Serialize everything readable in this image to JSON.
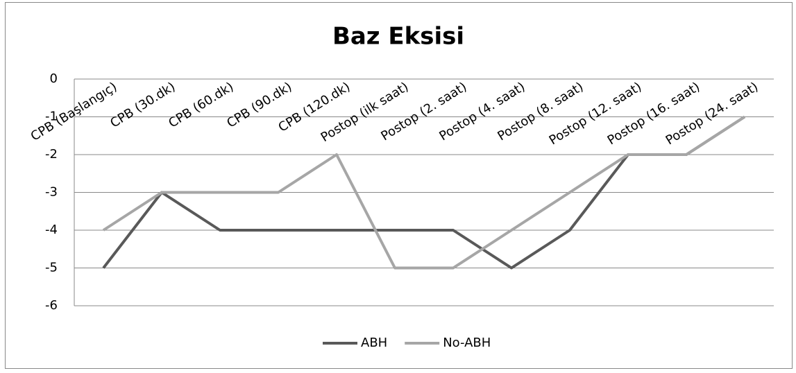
{
  "chart_data": {
    "type": "line",
    "title": "Baz Eksisi",
    "categories": [
      "CPB (Başlangıç)",
      "CPB (30.dk)",
      "CPB (60.dk)",
      "CPB (90.dk)",
      "CPB (120.dk)",
      "Postop (ilk saat)",
      "Postop (2. saat)",
      "Postop (4. saat)",
      "Postop (8. saat)",
      "Postop (12. saat)",
      "Postop (16. saat)",
      "Postop (24. saat)"
    ],
    "series": [
      {
        "name": "ABH",
        "color": "#595959",
        "values": [
          -5,
          -3,
          -4,
          -4,
          -4,
          -4,
          -4,
          -5,
          -4,
          -2,
          -2,
          -1
        ]
      },
      {
        "name": "No-ABH",
        "color": "#a6a6a6",
        "values": [
          -4,
          -3,
          -3,
          -3,
          -2,
          -5,
          -5,
          -4,
          -3,
          -2,
          -2,
          -1
        ]
      }
    ],
    "ylim": [
      -6,
      0
    ],
    "yticks": [
      0,
      -1,
      -2,
      -3,
      -4,
      -5,
      -6
    ],
    "grid": true,
    "legend": "bottom"
  }
}
